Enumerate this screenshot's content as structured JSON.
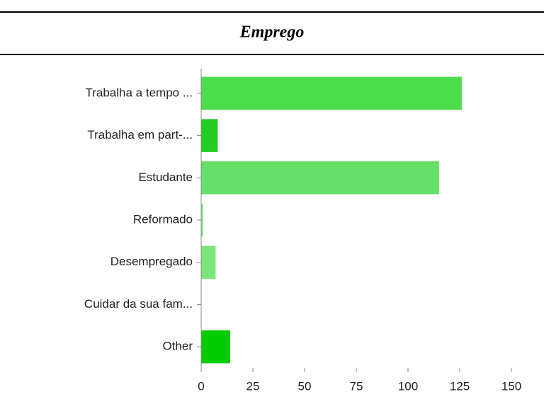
{
  "chart_data": {
    "type": "bar",
    "orientation": "horizontal",
    "title": "Emprego",
    "categories": [
      "Trabalha a tempo ...",
      "Trabalha em part-...",
      "Estudante",
      "Reformado",
      "Desempregado",
      "Cuidar da sua fam...",
      "Other"
    ],
    "values": [
      126,
      8,
      115,
      1,
      7,
      0,
      14
    ],
    "colors": [
      "#4cdd4c",
      "#22cc22",
      "#66e066",
      "#8ee88e",
      "#7ae67a",
      "#99ee99",
      "#00cc00"
    ],
    "xlim": [
      0,
      150
    ],
    "xticks": [
      0,
      25,
      50,
      75,
      100,
      125,
      150
    ],
    "grid": false
  }
}
